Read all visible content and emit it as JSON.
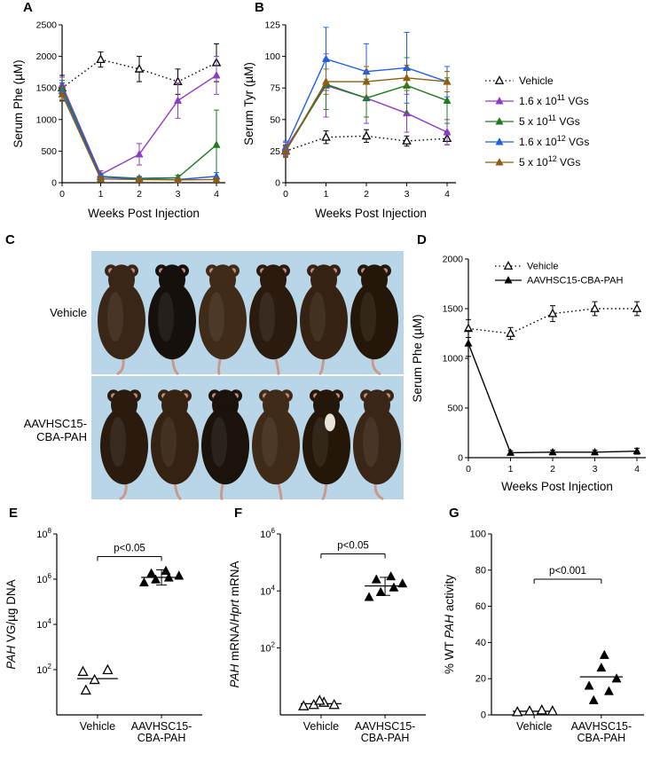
{
  "panels": {
    "A": {
      "label": "A"
    },
    "B": {
      "label": "B"
    },
    "C": {
      "label": "C",
      "vehicle_label": "Vehicle",
      "treated_label_line1": "AAVHSC15-",
      "treated_label_line2": "CBA-PAH"
    },
    "D": {
      "label": "D"
    },
    "E": {
      "label": "E"
    },
    "F": {
      "label": "F"
    },
    "G": {
      "label": "G"
    }
  },
  "legend": {
    "items": [
      {
        "base": "Vehicle",
        "sup": "",
        "suffix": "",
        "marker": "triangle-open",
        "line": "dotted",
        "color": "#000000"
      },
      {
        "base": "1.6 x 10",
        "sup": "11",
        "suffix": " VGs",
        "marker": "triangle-filled",
        "line": "solid",
        "color": "#8D3DC3"
      },
      {
        "base": "5 x 10",
        "sup": "11",
        "suffix": " VGs",
        "marker": "triangle-filled",
        "line": "solid",
        "color": "#1E7B1E"
      },
      {
        "base": "1.6 x 10",
        "sup": "12",
        "suffix": " VGs",
        "marker": "triangle-filled",
        "line": "solid",
        "color": "#1F5FE0"
      },
      {
        "base": "5 x 10",
        "sup": "12",
        "suffix": " VGs",
        "marker": "triangle-filled",
        "line": "solid",
        "color": "#8E5D10"
      }
    ]
  },
  "chart_data": [
    {
      "id": "A",
      "type": "line",
      "xlabel": "Weeks Post Injection",
      "ylabel": "Serum Phe (µM)",
      "x": [
        0,
        1,
        2,
        3,
        4
      ],
      "ylim": [
        0,
        2500
      ],
      "yticks": [
        0,
        500,
        1000,
        1500,
        2000,
        2500
      ],
      "series": [
        {
          "name": "Vehicle",
          "color": "#000000",
          "line": "dotted",
          "marker": "triangle-open",
          "values": [
            1500,
            1950,
            1800,
            1600,
            1900
          ],
          "errors": [
            200,
            120,
            200,
            200,
            300
          ]
        },
        {
          "name": "1.6 x 10^11 VGs",
          "color": "#8D3DC3",
          "line": "solid",
          "marker": "triangle-filled",
          "values": [
            1550,
            130,
            450,
            1300,
            1700
          ],
          "errors": [
            120,
            60,
            170,
            280,
            300
          ]
        },
        {
          "name": "5 x 10^11 VGs",
          "color": "#1E7B1E",
          "line": "solid",
          "marker": "triangle-filled",
          "values": [
            1500,
            100,
            70,
            80,
            600
          ],
          "errors": [
            120,
            40,
            30,
            40,
            550
          ]
        },
        {
          "name": "1.6 x 10^12 VGs",
          "color": "#1F5FE0",
          "line": "solid",
          "marker": "triangle-filled",
          "values": [
            1450,
            90,
            60,
            50,
            100
          ],
          "errors": [
            130,
            40,
            30,
            25,
            60
          ]
        },
        {
          "name": "5 x 10^12 VGs",
          "color": "#8E5D10",
          "line": "solid",
          "marker": "triangle-filled",
          "values": [
            1400,
            60,
            50,
            45,
            50
          ],
          "errors": [
            110,
            25,
            20,
            20,
            25
          ]
        }
      ]
    },
    {
      "id": "B",
      "type": "line",
      "xlabel": "Weeks Post Injection",
      "ylabel": "Serum Tyr (µM)",
      "x": [
        0,
        1,
        2,
        3,
        4
      ],
      "ylim": [
        0,
        125
      ],
      "yticks": [
        0,
        25,
        50,
        75,
        100,
        125
      ],
      "series": [
        {
          "name": "Vehicle",
          "color": "#000000",
          "line": "dotted",
          "marker": "triangle-open",
          "values": [
            25,
            36,
            37,
            33,
            35
          ],
          "errors": [
            4,
            5,
            5,
            4,
            5
          ]
        },
        {
          "name": "1.6 x 10^11 VGs",
          "color": "#8D3DC3",
          "line": "solid",
          "marker": "triangle-filled",
          "values": [
            27,
            77,
            67,
            55,
            40
          ],
          "errors": [
            5,
            25,
            20,
            15,
            10
          ]
        },
        {
          "name": "5 x 10^11 VGs",
          "color": "#1E7B1E",
          "line": "solid",
          "marker": "triangle-filled",
          "values": [
            25,
            78,
            67,
            77,
            65
          ],
          "errors": [
            5,
            20,
            15,
            22,
            18
          ]
        },
        {
          "name": "1.6 x 10^12 VGs",
          "color": "#1F5FE0",
          "line": "solid",
          "marker": "triangle-filled",
          "values": [
            28,
            98,
            88,
            91,
            80
          ],
          "errors": [
            5,
            25,
            22,
            28,
            12
          ]
        },
        {
          "name": "5 x 10^12 VGs",
          "color": "#8E5D10",
          "line": "solid",
          "marker": "triangle-filled",
          "values": [
            25,
            80,
            80,
            83,
            80
          ],
          "errors": [
            5,
            10,
            12,
            10,
            8
          ]
        }
      ]
    },
    {
      "id": "D",
      "type": "line",
      "xlabel": "Weeks Post Injection",
      "ylabel": "Serum Phe (µM)",
      "x": [
        0,
        1,
        2,
        3,
        4
      ],
      "ylim": [
        0,
        2000
      ],
      "yticks": [
        0,
        500,
        1000,
        1500,
        2000
      ],
      "legend_position": "inner-top",
      "series": [
        {
          "name": "Vehicle",
          "color": "#000000",
          "line": "dotted",
          "marker": "triangle-open",
          "values": [
            1300,
            1250,
            1450,
            1500,
            1500
          ],
          "errors": [
            90,
            60,
            80,
            70,
            70
          ]
        },
        {
          "name": "AAVHSC15-CBA-PAH",
          "color": "#000000",
          "line": "solid",
          "marker": "triangle-filled",
          "values": [
            1150,
            50,
            55,
            55,
            65
          ],
          "errors": [
            130,
            20,
            20,
            20,
            30
          ]
        }
      ]
    },
    {
      "id": "E",
      "type": "scatter",
      "yscale": "log",
      "ylabel_parts": [
        {
          "text": "PAH",
          "italic": true
        },
        {
          "text": " VG/µg DNA",
          "italic": false
        }
      ],
      "ylog_lim": [
        0,
        8
      ],
      "yticks_exp": [
        2,
        4,
        6,
        8
      ],
      "categories": [
        [
          "Vehicle"
        ],
        [
          "AAVHSC15-",
          "CBA-PAH"
        ]
      ],
      "p_label": "p<0.05",
      "bracket_y": 10000000,
      "groups": [
        {
          "name": "Vehicle",
          "marker": "triangle-open",
          "color": "#000000",
          "median": 40,
          "points": [
            {
              "dx": -0.1,
              "v": 80
            },
            {
              "dx": 0.07,
              "v": 95
            },
            {
              "dx": -0.02,
              "v": 35
            },
            {
              "dx": -0.08,
              "v": 12
            }
          ]
        },
        {
          "name": "AAVHSC15-CBA-PAH",
          "marker": "triangle-filled",
          "color": "#000000",
          "median": 1200000,
          "err_hi": 2600000,
          "err_lo": 550000,
          "points": [
            {
              "dx": -0.12,
              "v": 700000
            },
            {
              "dx": -0.04,
              "v": 950000
            },
            {
              "dx": 0.05,
              "v": 1150000
            },
            {
              "dx": 0.12,
              "v": 1400000
            },
            {
              "dx": -0.07,
              "v": 1800000
            },
            {
              "dx": 0.03,
              "v": 2300000
            }
          ]
        }
      ]
    },
    {
      "id": "F",
      "type": "scatter",
      "yscale": "log",
      "ylabel_parts": [
        {
          "text": "PAH",
          "italic": true
        },
        {
          "text": " mRNA/",
          "italic": false
        },
        {
          "text": "Hprt",
          "italic": true
        },
        {
          "text": " mRNA",
          "italic": false
        }
      ],
      "ylog_lim": [
        -0.35,
        6
      ],
      "yticks_exp": [
        2,
        4,
        6
      ],
      "categories": [
        [
          "Vehicle"
        ],
        [
          "AAVHSC15-",
          "CBA-PAH"
        ]
      ],
      "p_label": "p<0.05",
      "bracket_y": 200000,
      "groups": [
        {
          "name": "Vehicle",
          "marker": "triangle-open",
          "color": "#000000",
          "median": 1.1,
          "points": [
            {
              "dx": -0.12,
              "v": 0.9
            },
            {
              "dx": -0.05,
              "v": 1.0
            },
            {
              "dx": 0.02,
              "v": 1.2
            },
            {
              "dx": 0.09,
              "v": 1.0
            },
            {
              "dx": -0.01,
              "v": 1.4
            }
          ]
        },
        {
          "name": "AAVHSC15-CBA-PAH",
          "marker": "triangle-filled",
          "color": "#000000",
          "median": 15000,
          "err_hi": 30000,
          "err_lo": 7000,
          "points": [
            {
              "dx": -0.11,
              "v": 6000
            },
            {
              "dx": -0.03,
              "v": 9000
            },
            {
              "dx": 0.06,
              "v": 13000
            },
            {
              "dx": 0.12,
              "v": 18000
            },
            {
              "dx": -0.06,
              "v": 25000
            },
            {
              "dx": 0.04,
              "v": 32000
            }
          ]
        }
      ]
    },
    {
      "id": "G",
      "type": "scatter",
      "yscale": "linear",
      "ylabel_parts": [
        {
          "text": "% WT ",
          "italic": false
        },
        {
          "text": "PAH",
          "italic": true
        },
        {
          "text": " activity",
          "italic": false
        }
      ],
      "ylim": [
        0,
        100
      ],
      "yticks": [
        0,
        20,
        40,
        60,
        80,
        100
      ],
      "categories": [
        [
          "Vehicle"
        ],
        [
          "AAVHSC15-",
          "CBA-PAH"
        ]
      ],
      "p_label": "p<0.001",
      "bracket_y": 75,
      "groups": [
        {
          "name": "Vehicle",
          "marker": "triangle-open",
          "color": "#000000",
          "median": 2,
          "points": [
            {
              "dx": -0.11,
              "v": 1.5
            },
            {
              "dx": -0.03,
              "v": 2
            },
            {
              "dx": 0.05,
              "v": 2.5
            },
            {
              "dx": 0.12,
              "v": 2
            }
          ]
        },
        {
          "name": "AAVHSC15-CBA-PAH",
          "marker": "triangle-filled",
          "color": "#000000",
          "median": 21,
          "points": [
            {
              "dx": -0.05,
              "v": 8
            },
            {
              "dx": 0.05,
              "v": 13
            },
            {
              "dx": -0.08,
              "v": 16
            },
            {
              "dx": 0.1,
              "v": 20
            },
            {
              "dx": 0.0,
              "v": 26
            },
            {
              "dx": 0.02,
              "v": 33
            }
          ]
        }
      ]
    }
  ]
}
